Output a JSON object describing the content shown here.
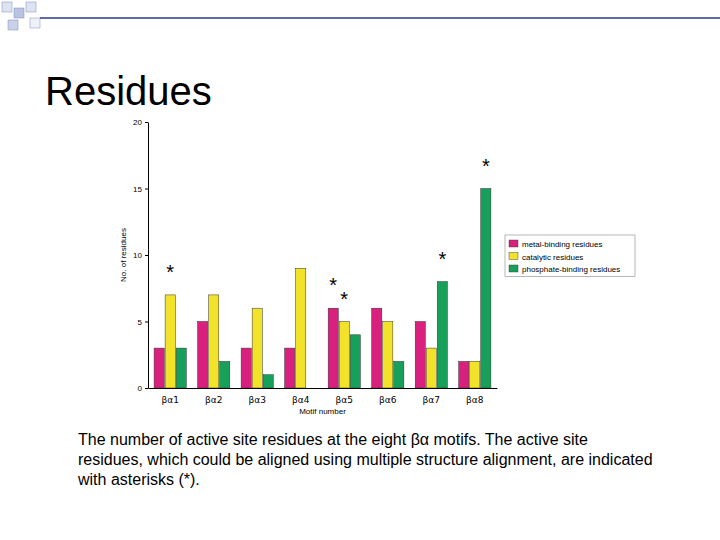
{
  "slide": {
    "title": "Residues",
    "caption": "The number of active site residues at the eight βα motifs. The active site residues, which could be aligned using multiple structure alignment, are indicated with asterisks (*)."
  },
  "chart_data": {
    "type": "bar",
    "x_label": "Motif number",
    "y_label": "No. of residues",
    "categories": [
      "βα1",
      "βα2",
      "βα3",
      "βα4",
      "βα5",
      "βα6",
      "βα7",
      "βα8"
    ],
    "series": [
      {
        "name": "metal-binding residues",
        "color": "#d9207f",
        "values": [
          3,
          5,
          3,
          3,
          6,
          6,
          5,
          2
        ]
      },
      {
        "name": "catalytic residues",
        "color": "#f2e22a",
        "values": [
          7,
          7,
          6,
          9,
          5,
          5,
          3,
          2
        ]
      },
      {
        "name": "phosphate-binding residues",
        "color": "#16a05a",
        "values": [
          3,
          2,
          1,
          0,
          4,
          2,
          8,
          15
        ]
      }
    ],
    "annotations": [
      {
        "text": "*",
        "category": "βα1",
        "series": "catalytic residues"
      },
      {
        "text": "*",
        "category": "βα5",
        "series": "metal-binding residues"
      },
      {
        "text": "*",
        "category": "βα5",
        "series": "catalytic residues"
      },
      {
        "text": "*",
        "category": "βα7",
        "series": "phosphate-binding residues"
      },
      {
        "text": "*",
        "category": "βα8",
        "series": "phosphate-binding residues"
      }
    ],
    "ylim": [
      0,
      20
    ],
    "yticks": [
      0,
      5,
      10,
      15,
      20
    ],
    "grid": false,
    "legend": "right"
  }
}
